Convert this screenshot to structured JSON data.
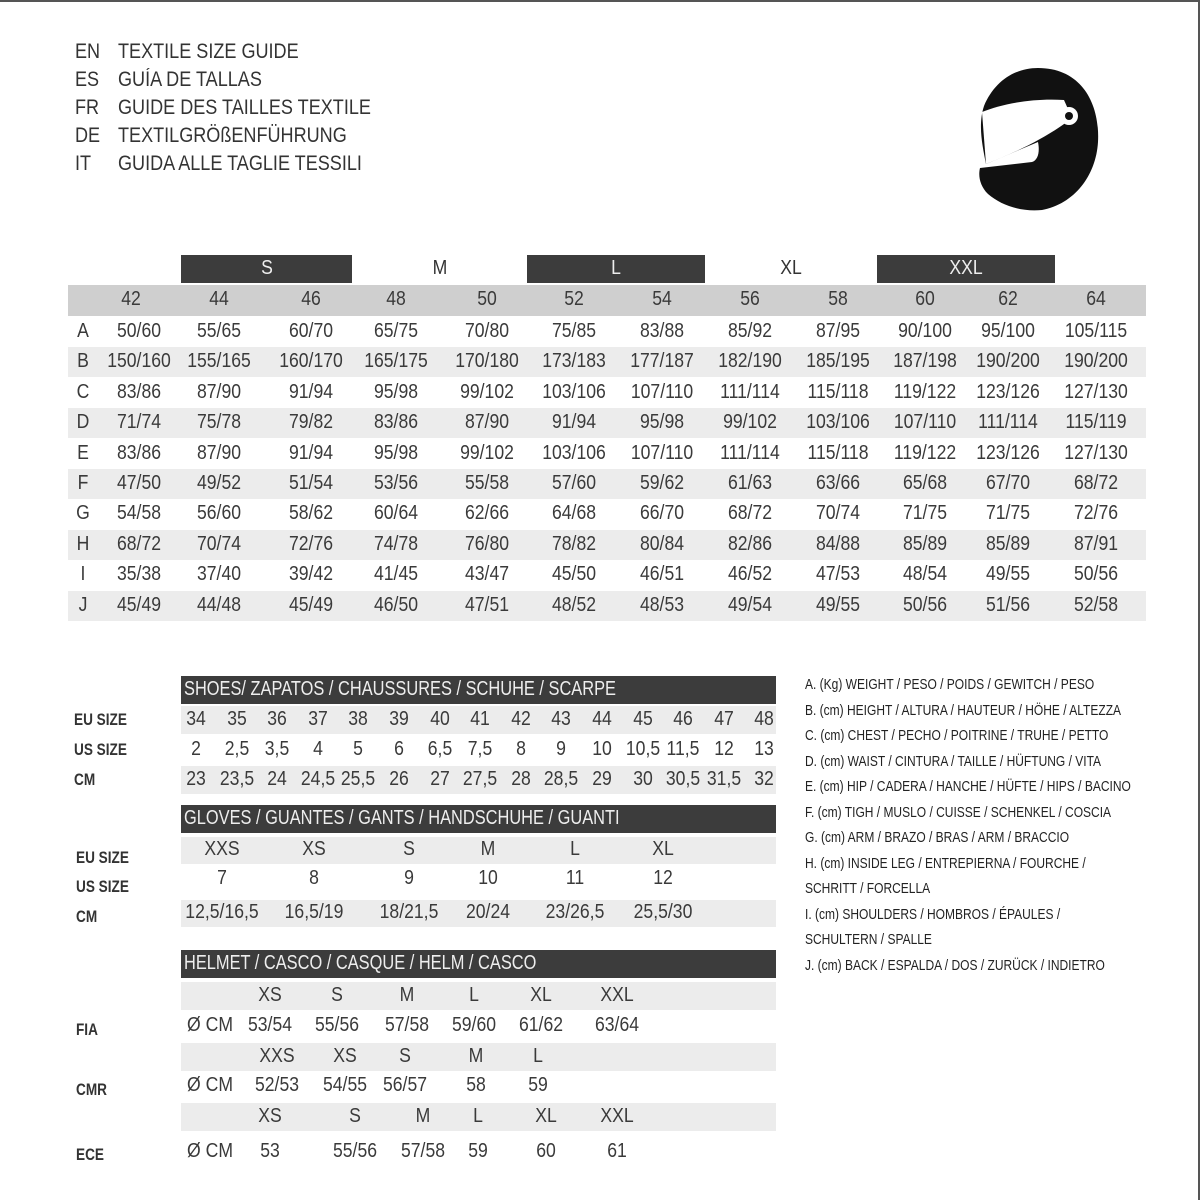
{
  "titles": [
    {
      "code": "EN",
      "text": "TEXTILE SIZE GUIDE"
    },
    {
      "code": "ES",
      "text": "GUÍA DE TALLAS"
    },
    {
      "code": "FR",
      "text": "GUIDE DES TAILLES TEXTILE"
    },
    {
      "code": "DE",
      "text": "TEXTILGRÖßENFÜHRUNG"
    },
    {
      "code": "IT",
      "text": "GUIDA ALLE TAGLIE TESSILI"
    }
  ],
  "icon": "helmet-icon",
  "textile": {
    "size_labels": [
      "S",
      "M",
      "L",
      "XL",
      "XXL"
    ],
    "numbers": [
      "42",
      "44",
      "46",
      "48",
      "50",
      "52",
      "54",
      "56",
      "58",
      "60",
      "62",
      "64"
    ],
    "rows": [
      {
        "letter": "A",
        "values": [
          "50/60",
          "55/65",
          "60/70",
          "65/75",
          "70/80",
          "75/85",
          "83/88",
          "85/92",
          "87/95",
          "90/100",
          "95/100",
          "105/115"
        ]
      },
      {
        "letter": "B",
        "values": [
          "150/160",
          "155/165",
          "160/170",
          "165/175",
          "170/180",
          "173/183",
          "177/187",
          "182/190",
          "185/195",
          "187/198",
          "190/200",
          "190/200"
        ]
      },
      {
        "letter": "C",
        "values": [
          "83/86",
          "87/90",
          "91/94",
          "95/98",
          "99/102",
          "103/106",
          "107/110",
          "111/114",
          "115/118",
          "119/122",
          "123/126",
          "127/130"
        ]
      },
      {
        "letter": "D",
        "values": [
          "71/74",
          "75/78",
          "79/82",
          "83/86",
          "87/90",
          "91/94",
          "95/98",
          "99/102",
          "103/106",
          "107/110",
          "111/114",
          "115/119"
        ]
      },
      {
        "letter": "E",
        "values": [
          "83/86",
          "87/90",
          "91/94",
          "95/98",
          "99/102",
          "103/106",
          "107/110",
          "111/114",
          "115/118",
          "119/122",
          "123/126",
          "127/130"
        ]
      },
      {
        "letter": "F",
        "values": [
          "47/50",
          "49/52",
          "51/54",
          "53/56",
          "55/58",
          "57/60",
          "59/62",
          "61/63",
          "63/66",
          "65/68",
          "67/70",
          "68/72"
        ]
      },
      {
        "letter": "G",
        "values": [
          "54/58",
          "56/60",
          "58/62",
          "60/64",
          "62/66",
          "64/68",
          "66/70",
          "68/72",
          "70/74",
          "71/75",
          "71/75",
          "72/76"
        ]
      },
      {
        "letter": "H",
        "values": [
          "68/72",
          "70/74",
          "72/76",
          "74/78",
          "76/80",
          "78/82",
          "80/84",
          "82/86",
          "84/88",
          "85/89",
          "85/89",
          "87/91"
        ]
      },
      {
        "letter": "I",
        "values": [
          "35/38",
          "37/40",
          "39/42",
          "41/45",
          "43/47",
          "45/50",
          "46/51",
          "46/52",
          "47/53",
          "48/54",
          "49/55",
          "50/56"
        ]
      },
      {
        "letter": "J",
        "values": [
          "45/49",
          "44/48",
          "45/49",
          "46/50",
          "47/51",
          "48/52",
          "48/53",
          "49/54",
          "49/55",
          "50/56",
          "51/56",
          "52/58"
        ]
      }
    ]
  },
  "shoes": {
    "title": "SHOES/ ZAPATOS / CHAUSSURES / SCHUHE / SCARPE",
    "row_labels": [
      "EU SIZE",
      "US SIZE",
      "CM"
    ],
    "eu": [
      "34",
      "35",
      "36",
      "37",
      "38",
      "39",
      "40",
      "41",
      "42",
      "43",
      "44",
      "45",
      "46",
      "47",
      "48"
    ],
    "us": [
      "2",
      "2,5",
      "3,5",
      "4",
      "5",
      "6",
      "6,5",
      "7,5",
      "8",
      "9",
      "10",
      "10,5",
      "11,5",
      "12",
      "13"
    ],
    "cm": [
      "23",
      "23,5",
      "24",
      "24,5",
      "25,5",
      "26",
      "27",
      "27,5",
      "28",
      "28,5",
      "29",
      "30",
      "30,5",
      "31,5",
      "32"
    ]
  },
  "gloves": {
    "title": "GLOVES / GUANTES / GANTS / HANDSCHUHE / GUANTI",
    "row_labels": [
      "EU SIZE",
      "US SIZE",
      "CM"
    ],
    "eu": [
      "XXS",
      "XS",
      "S",
      "M",
      "L",
      "XL"
    ],
    "us": [
      "7",
      "8",
      "9",
      "10",
      "11",
      "12"
    ],
    "cm": [
      "12,5/16,5",
      "16,5/19",
      "18/21,5",
      "20/24",
      "23/26,5",
      "25,5/30"
    ]
  },
  "helmet": {
    "title": "HELMET / CASCO / CASQUE / HELM / CASCO",
    "unit": "Ø CM",
    "standards": [
      {
        "name": "FIA",
        "sizes": [
          "XS",
          "S",
          "M",
          "L",
          "XL",
          "XXL"
        ],
        "values": [
          "53/54",
          "55/56",
          "57/58",
          "59/60",
          "61/62",
          "63/64"
        ]
      },
      {
        "name": "CMR",
        "sizes": [
          "XXS",
          "XS",
          "S",
          "M",
          "L"
        ],
        "values": [
          "52/53",
          "54/55",
          "56/57",
          "58",
          "59"
        ]
      },
      {
        "name": "ECE",
        "sizes": [
          "XS",
          "S",
          "M",
          "L",
          "XL",
          "XXL"
        ],
        "values": [
          "53",
          "55/56",
          "57/58",
          "59",
          "60",
          "61"
        ]
      }
    ]
  },
  "legend": [
    "A. (Kg) WEIGHT / PESO / POIDS / GEWITCH / PESO",
    "B. (cm) HEIGHT / ALTURA / HAUTEUR / HÖHE / ALTEZZA",
    "C. (cm) CHEST / PECHO / POITRINE / TRUHE / PETTO",
    "D. (cm) WAIST / CINTURA / TAILLE / HÜFTUNG / VITA",
    "E. (cm) HIP / CADERA / HANCHE / HÜFTE / HIPS / BACINO",
    "F.  (cm) TIGH / MUSLO / CUISSE / SCHENKEL / COSCIA",
    "G. (cm) ARM / BRAZO / BRAS / ARM / BRACCIO",
    "H. (cm) INSIDE LEG / ENTREPIERNA / FOURCHE /",
    "SCHRITT / FORCELLA",
    "I.  (cm) SHOULDERS / HOMBROS / ÉPAULES /",
    "SCHULTERN / SPALLE",
    "J. (cm) BACK / ESPALDA / DOS / ZURÜCK / INDIETRO"
  ]
}
